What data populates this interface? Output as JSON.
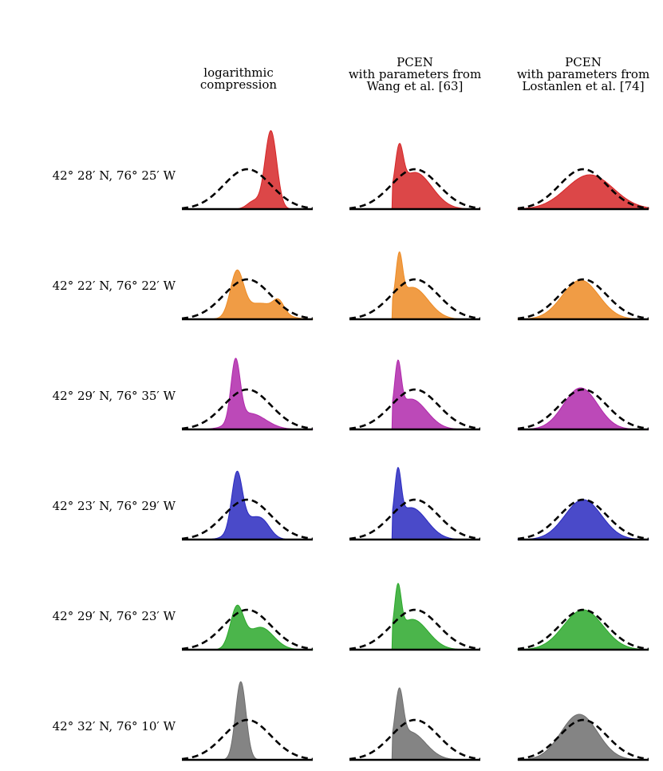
{
  "chart_data": {
    "type": "area",
    "title": "",
    "columns": [
      {
        "id": "log",
        "lines": [
          "logarithmic",
          "compression"
        ]
      },
      {
        "id": "pcen_wang",
        "lines": [
          "PCEN",
          "with parameters from",
          "Wang et al. [63]"
        ]
      },
      {
        "id": "pcen_lostanlen",
        "lines": [
          "PCEN",
          "with parameters from",
          "Lostanlen et al. [74]"
        ]
      }
    ],
    "rows": [
      {
        "label": "42° 28′ N, 76° 25′ W",
        "color": "#d62728"
      },
      {
        "label": "42° 22′ N, 76° 22′ W",
        "color": "#ed8b25"
      },
      {
        "label": "42° 29′ N, 76° 35′ W",
        "color": "#b029ab"
      },
      {
        "label": "42° 23′ N, 76° 29′ W",
        "color": "#2a2ac0"
      },
      {
        "label": "42° 29′ N, 76° 23′ W",
        "color": "#2ba82b"
      },
      {
        "label": "42° 32′ N, 76° 10′ W",
        "color": "#6e6e6e"
      }
    ],
    "x_range": [
      0,
      1
    ],
    "y_range": [
      0,
      1
    ],
    "reference_curve": {
      "style": "dashed",
      "color": "#000000",
      "type": "gaussian",
      "mean": 0.5,
      "std": 0.18,
      "peak": 0.5
    },
    "distributions": [
      [
        {
          "components": [
            {
              "mean": 0.68,
              "std": 0.045,
              "amp": 0.98
            },
            {
              "mean": 0.55,
              "std": 0.05,
              "amp": 0.1
            }
          ],
          "onset": null
        },
        {
          "components": [
            {
              "mean": 0.38,
              "std": 0.03,
              "amp": 0.52
            },
            {
              "mean": 0.5,
              "std": 0.13,
              "amp": 0.46
            }
          ],
          "onset": 0.33
        },
        {
          "components": [
            {
              "mean": 0.55,
              "std": 0.18,
              "amp": 0.43
            }
          ],
          "onset": null
        }
      ],
      [
        {
          "components": [
            {
              "mean": 0.42,
              "std": 0.05,
              "amp": 0.54
            },
            {
              "mean": 0.6,
              "std": 0.13,
              "amp": 0.2
            },
            {
              "mean": 0.74,
              "std": 0.04,
              "amp": 0.14
            }
          ],
          "onset": null
        },
        {
          "components": [
            {
              "mean": 0.38,
              "std": 0.025,
              "amp": 0.56
            },
            {
              "mean": 0.48,
              "std": 0.12,
              "amp": 0.4
            }
          ],
          "onset": 0.33
        },
        {
          "components": [
            {
              "mean": 0.48,
              "std": 0.14,
              "amp": 0.49
            }
          ],
          "onset": null
        }
      ],
      [
        {
          "components": [
            {
              "mean": 0.41,
              "std": 0.035,
              "amp": 0.76
            },
            {
              "mean": 0.52,
              "std": 0.12,
              "amp": 0.2
            }
          ],
          "onset": null
        },
        {
          "components": [
            {
              "mean": 0.37,
              "std": 0.025,
              "amp": 0.6
            },
            {
              "mean": 0.47,
              "std": 0.12,
              "amp": 0.38
            }
          ],
          "onset": 0.33
        },
        {
          "components": [
            {
              "mean": 0.48,
              "std": 0.13,
              "amp": 0.52
            }
          ],
          "onset": null
        }
      ],
      [
        {
          "components": [
            {
              "mean": 0.42,
              "std": 0.04,
              "amp": 0.68
            },
            {
              "mean": 0.62,
              "std": 0.06,
              "amp": 0.14
            },
            {
              "mean": 0.5,
              "std": 0.1,
              "amp": 0.24
            }
          ],
          "onset": null
        },
        {
          "components": [
            {
              "mean": 0.37,
              "std": 0.025,
              "amp": 0.62
            },
            {
              "mean": 0.47,
              "std": 0.12,
              "amp": 0.4
            }
          ],
          "onset": 0.33
        },
        {
          "components": [
            {
              "mean": 0.5,
              "std": 0.14,
              "amp": 0.5
            }
          ],
          "onset": null
        }
      ],
      [
        {
          "components": [
            {
              "mean": 0.42,
              "std": 0.05,
              "amp": 0.5
            },
            {
              "mean": 0.6,
              "std": 0.1,
              "amp": 0.28
            }
          ],
          "onset": null
        },
        {
          "components": [
            {
              "mean": 0.37,
              "std": 0.025,
              "amp": 0.58
            },
            {
              "mean": 0.48,
              "std": 0.12,
              "amp": 0.38
            }
          ],
          "onset": 0.33
        },
        {
          "components": [
            {
              "mean": 0.5,
              "std": 0.15,
              "amp": 0.5
            }
          ],
          "onset": null
        }
      ],
      [
        {
          "components": [
            {
              "mean": 0.45,
              "std": 0.04,
              "amp": 0.98
            }
          ],
          "onset": null
        },
        {
          "components": [
            {
              "mean": 0.38,
              "std": 0.03,
              "amp": 0.62
            },
            {
              "mean": 0.46,
              "std": 0.12,
              "amp": 0.35
            }
          ],
          "onset": 0.33
        },
        {
          "components": [
            {
              "mean": 0.47,
              "std": 0.14,
              "amp": 0.57
            }
          ],
          "onset": null
        }
      ]
    ]
  }
}
